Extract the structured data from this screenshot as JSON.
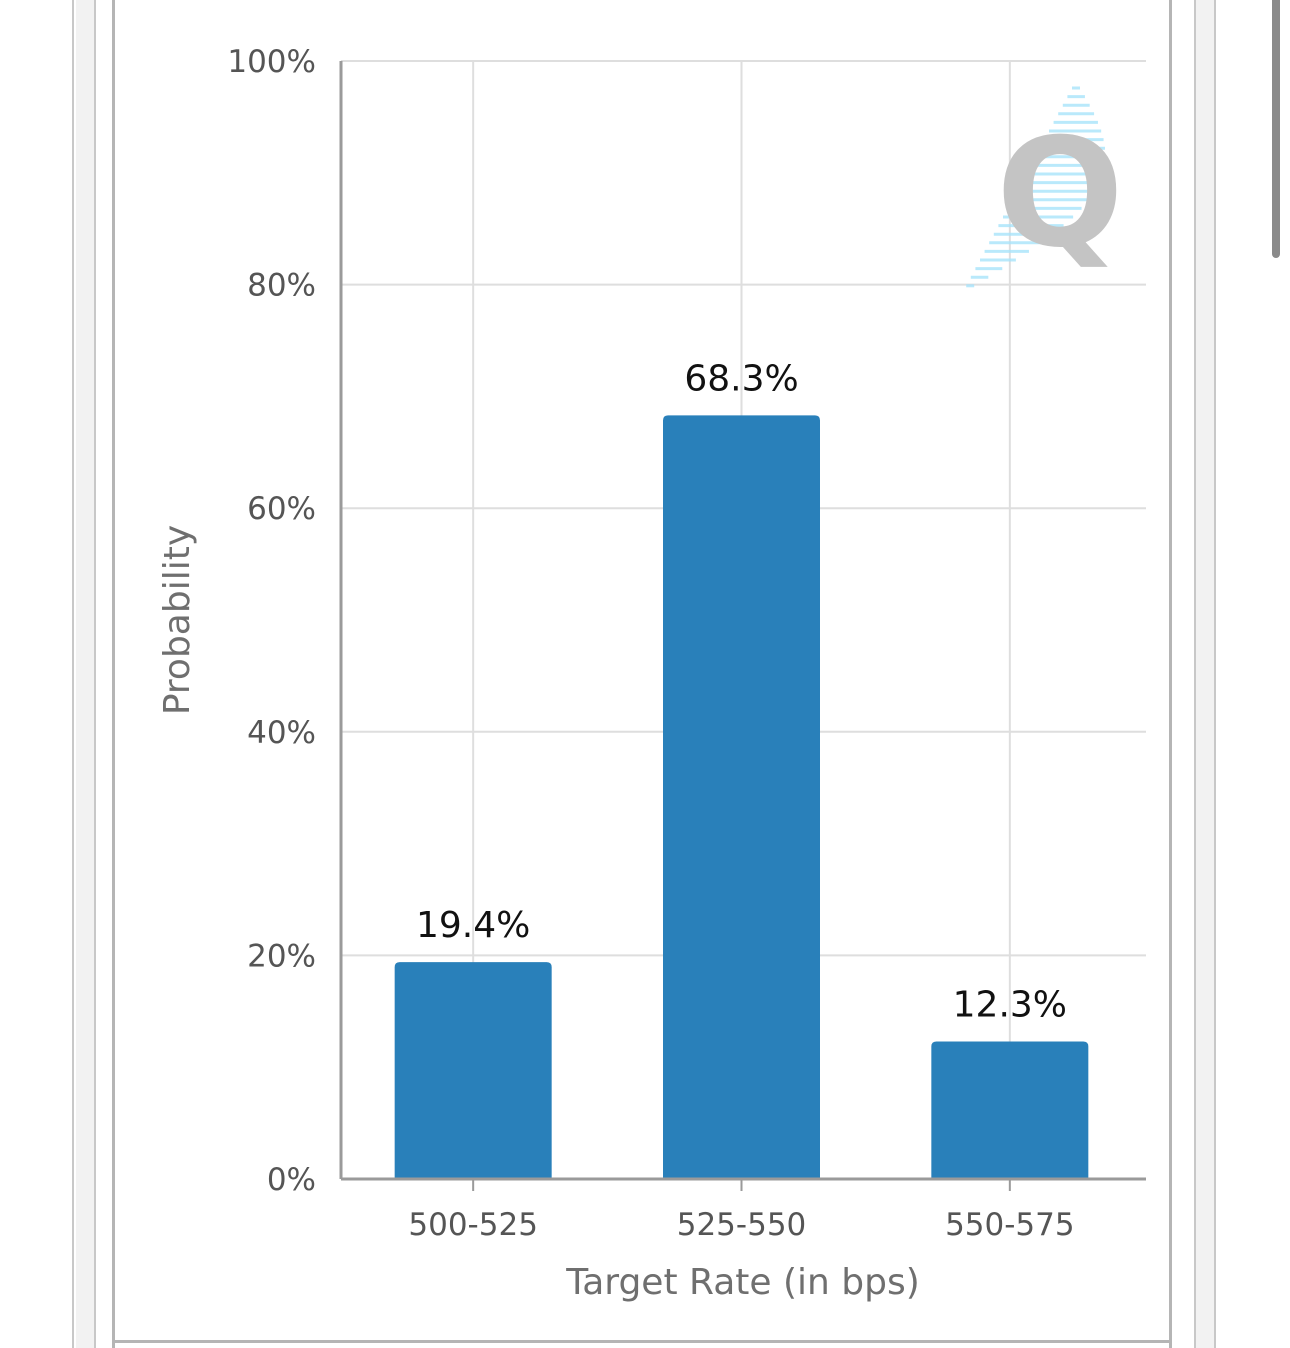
{
  "colors": {
    "bar": "#2980ba",
    "grid": "#dedede",
    "axis": "#9a9a9a",
    "frame": "#c8c8c8",
    "watermark_q": "#c4c4c4",
    "watermark_streak": "#a8e4fb"
  },
  "watermark": {
    "icon": "cme-fedwatch-q-logo-icon"
  },
  "chart_data": {
    "type": "bar",
    "title": "",
    "xlabel": "Target Rate (in bps)",
    "ylabel": "Probability",
    "categories": [
      "500-525",
      "525-550",
      "550-575"
    ],
    "values": [
      19.4,
      68.3,
      12.3
    ],
    "value_labels": [
      "19.4%",
      "68.3%",
      "12.3%"
    ],
    "ylim": [
      0,
      100
    ],
    "yticks": [
      0,
      20,
      40,
      60,
      80,
      100
    ],
    "ytick_labels": [
      "0%",
      "20%",
      "40%",
      "60%",
      "80%",
      "100%"
    ],
    "grid": true,
    "legend": "none"
  }
}
